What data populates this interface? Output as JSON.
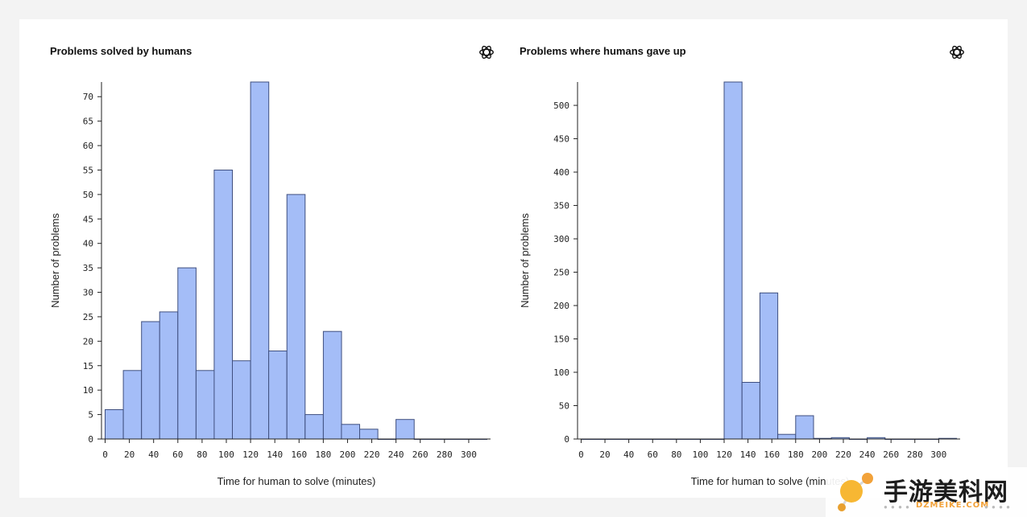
{
  "chart_data": [
    {
      "type": "bar",
      "title": "Problems solved by humans",
      "xlabel": "Time for human to solve (minutes)",
      "ylabel": "Number of problems",
      "bin_edges": [
        0,
        15,
        30,
        45,
        60,
        75,
        90,
        105,
        120,
        135,
        150,
        165,
        180,
        195,
        210,
        225,
        240,
        255,
        270,
        285,
        300,
        315
      ],
      "values": [
        6,
        14,
        24,
        26,
        35,
        14,
        55,
        16,
        73,
        18,
        50,
        5,
        22,
        3,
        2,
        0,
        4,
        0,
        0,
        0,
        0
      ],
      "xticks": [
        0,
        20,
        40,
        60,
        80,
        100,
        120,
        140,
        160,
        180,
        200,
        220,
        240,
        260,
        280,
        300
      ],
      "yticks": [
        0,
        5,
        10,
        15,
        20,
        25,
        30,
        35,
        40,
        45,
        50,
        55,
        60,
        65,
        70
      ],
      "xlim": [
        -3,
        318
      ],
      "ylim": [
        0,
        73
      ],
      "grid": false,
      "bar_color": "#a4bdf7",
      "edge_color": "#3f4f7f"
    },
    {
      "type": "bar",
      "title": "Problems where humans gave up",
      "xlabel": "Time for human to solve (minutes)",
      "ylabel": "Number of problems",
      "bin_edges": [
        0,
        15,
        30,
        45,
        60,
        75,
        90,
        105,
        120,
        135,
        150,
        165,
        180,
        195,
        210,
        225,
        240,
        255,
        270,
        285,
        300,
        315
      ],
      "values": [
        0,
        0,
        0,
        0,
        0,
        0,
        0,
        0,
        535,
        85,
        219,
        7,
        35,
        1,
        2,
        0,
        2,
        0,
        0,
        0,
        1
      ],
      "xticks": [
        0,
        20,
        40,
        60,
        80,
        100,
        120,
        140,
        160,
        180,
        200,
        220,
        240,
        260,
        280,
        300
      ],
      "yticks": [
        0,
        50,
        100,
        150,
        200,
        250,
        300,
        350,
        400,
        450,
        500
      ],
      "xlim": [
        -3,
        318
      ],
      "ylim": [
        0,
        535
      ],
      "grid": false,
      "bar_color": "#a4bdf7",
      "edge_color": "#3f4f7f"
    }
  ],
  "logo_icon": "openai-logo-icon",
  "watermark": {
    "text": "手游美科网",
    "subtext": "DZMEIKE.COM",
    "accent_color": "#f2a23a"
  }
}
